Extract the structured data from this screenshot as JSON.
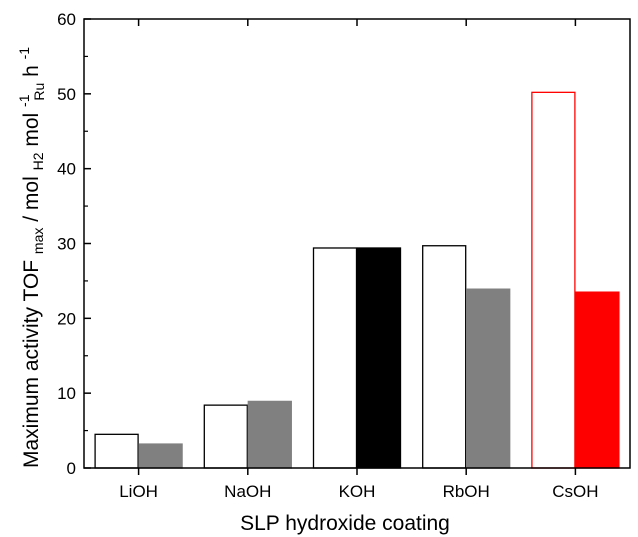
{
  "chart_data": {
    "type": "bar",
    "xlabel": "SLP hydroxide coating",
    "ylabel": {
      "prefix": "Maximum activity TOF",
      "sub1": "max",
      "mid1": " / mol",
      "sub2": "H2",
      "mid2": " mol",
      "sup3": "-1",
      "sub3": "Ru",
      "mid3": " h",
      "sup4": "-1"
    },
    "categories": [
      "LiOH",
      "NaOH",
      "KOH",
      "RbOH",
      "CsOH"
    ],
    "ylim": [
      0,
      60
    ],
    "yticks": [
      0,
      10,
      20,
      30,
      40,
      50,
      60
    ],
    "grid": false,
    "series": [
      {
        "values": [
          4.5,
          8.4,
          29.4,
          29.7,
          50.2
        ],
        "fills": [
          "#ffffff",
          "#ffffff",
          "#ffffff",
          "#ffffff",
          "#ffffff"
        ],
        "strokes": [
          "#000000",
          "#000000",
          "#000000",
          "#000000",
          "#ff0000"
        ]
      },
      {
        "values": [
          3.2,
          8.9,
          29.4,
          23.9,
          23.5
        ],
        "fills": [
          "#808080",
          "#808080",
          "#000000",
          "#808080",
          "#ff0000"
        ],
        "strokes": [
          "#808080",
          "#808080",
          "#000000",
          "#808080",
          "#ff0000"
        ]
      }
    ]
  }
}
